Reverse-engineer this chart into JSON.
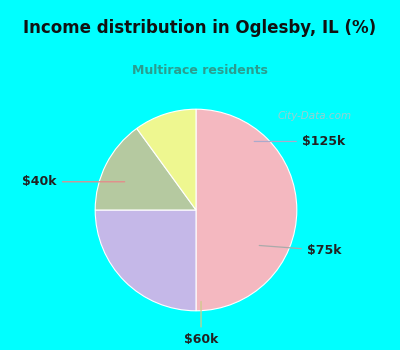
{
  "title": "Income distribution in Oglesby, IL (%)",
  "subtitle": "Multirace residents",
  "title_color": "#111111",
  "subtitle_color": "#2a9d8f",
  "title_bg": "#00ffff",
  "chart_bg": "#f0faf0",
  "labels": [
    "$40k",
    "$125k",
    "$75k",
    "$60k"
  ],
  "values": [
    50,
    25,
    15,
    10
  ],
  "colors": [
    "#f4b8c0",
    "#c5b8e8",
    "#b5c9a0",
    "#eef790"
  ],
  "startangle": 90,
  "watermark": "City-Data.com"
}
